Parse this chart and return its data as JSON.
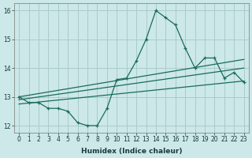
{
  "xlabel": "Humidex (Indice chaleur)",
  "ylabel": "",
  "bg_color": "#cce8e8",
  "grid_color": "#aacccc",
  "line_color": "#1a6b5a",
  "x_data": [
    0,
    1,
    2,
    3,
    4,
    5,
    6,
    7,
    8,
    9,
    10,
    11,
    12,
    13,
    14,
    15,
    16,
    17,
    18,
    19,
    20,
    21,
    22,
    23
  ],
  "y_main": [
    13.0,
    12.8,
    12.8,
    12.6,
    12.6,
    12.5,
    12.1,
    12.0,
    12.0,
    12.6,
    13.6,
    13.65,
    14.25,
    15.0,
    16.0,
    15.75,
    15.5,
    14.7,
    14.0,
    14.35,
    14.35,
    13.65,
    13.85,
    13.5
  ],
  "trend1_start": 13.0,
  "trend1_end": 14.3,
  "trend2_start": 12.75,
  "trend2_end": 13.55,
  "trend3_start": 12.9,
  "trend3_end": 14.0,
  "ylim": [
    11.75,
    16.25
  ],
  "xlim": [
    -0.5,
    23.5
  ],
  "yticks": [
    12,
    13,
    14,
    15,
    16
  ],
  "xticks": [
    0,
    1,
    2,
    3,
    4,
    5,
    6,
    7,
    8,
    9,
    10,
    11,
    12,
    13,
    14,
    15,
    16,
    17,
    18,
    19,
    20,
    21,
    22,
    23
  ]
}
